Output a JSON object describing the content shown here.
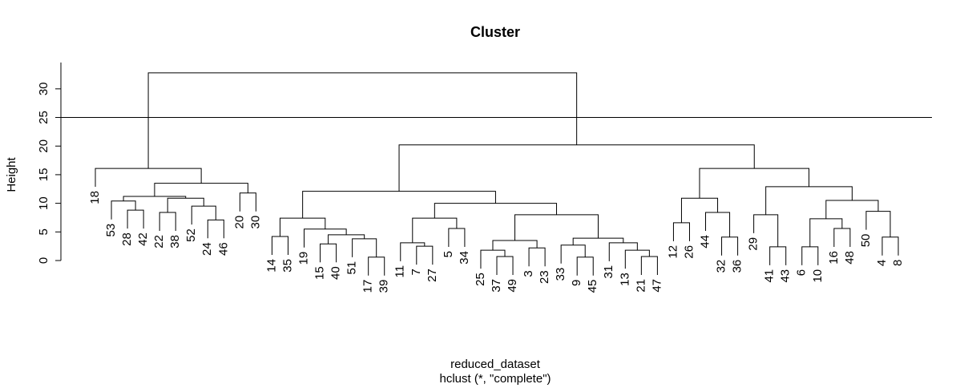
{
  "chart_data": {
    "type": "dendrogram",
    "title": "Cluster",
    "ylabel": "Height",
    "xlabel": "reduced_dataset",
    "subtitle": "hclust (*, \"complete\")",
    "ylim": [
      0,
      34.6
    ],
    "yticks": [
      0,
      5,
      10,
      15,
      20,
      25,
      30
    ],
    "cut_height": 25,
    "color": "#000000",
    "tree": {
      "height": 32.8,
      "children": [
        {
          "height": 16.1,
          "children": [
            {
              "label": "18"
            },
            {
              "height": 13.5,
              "children": [
                {
                  "height": 11.2,
                  "children": [
                    {
                      "height": 10.4,
                      "children": [
                        {
                          "label": "53"
                        },
                        {
                          "height": 8.8,
                          "children": [
                            {
                              "label": "28"
                            },
                            {
                              "label": "42"
                            }
                          ]
                        }
                      ]
                    },
                    {
                      "height": 10.9,
                      "children": [
                        {
                          "height": 8.4,
                          "children": [
                            {
                              "label": "22"
                            },
                            {
                              "label": "38"
                            }
                          ]
                        },
                        {
                          "height": 9.5,
                          "children": [
                            {
                              "label": "52"
                            },
                            {
                              "height": 7.1,
                              "children": [
                                {
                                  "label": "24"
                                },
                                {
                                  "label": "46"
                                }
                              ]
                            }
                          ]
                        }
                      ]
                    }
                  ]
                },
                {
                  "height": 11.8,
                  "children": [
                    {
                      "label": "20"
                    },
                    {
                      "label": "30"
                    }
                  ]
                }
              ]
            }
          ]
        },
        {
          "height": 20.2,
          "children": [
            {
              "height": 12.1,
              "children": [
                {
                  "height": 7.4,
                  "children": [
                    {
                      "height": 4.2,
                      "children": [
                        {
                          "label": "14"
                        },
                        {
                          "label": "35"
                        }
                      ]
                    },
                    {
                      "height": 5.5,
                      "children": [
                        {
                          "label": "19"
                        },
                        {
                          "height": 4.5,
                          "children": [
                            {
                              "height": 2.9,
                              "children": [
                                {
                                  "label": "15"
                                },
                                {
                                  "label": "40"
                                }
                              ]
                            },
                            {
                              "height": 3.8,
                              "children": [
                                {
                                  "label": "51"
                                },
                                {
                                  "height": 0.6,
                                  "children": [
                                    {
                                      "label": "17"
                                    },
                                    {
                                      "label": "39"
                                    }
                                  ]
                                }
                              ]
                            }
                          ]
                        }
                      ]
                    }
                  ]
                },
                {
                  "height": 10.0,
                  "children": [
                    {
                      "height": 7.4,
                      "children": [
                        {
                          "height": 3.1,
                          "children": [
                            {
                              "label": "11"
                            },
                            {
                              "height": 2.5,
                              "children": [
                                {
                                  "label": "7"
                                },
                                {
                                  "label": "27"
                                }
                              ]
                            }
                          ]
                        },
                        {
                          "height": 5.6,
                          "children": [
                            {
                              "label": "5"
                            },
                            {
                              "label": "34"
                            }
                          ]
                        }
                      ]
                    },
                    {
                      "height": 8.0,
                      "children": [
                        {
                          "height": 3.5,
                          "children": [
                            {
                              "height": 1.8,
                              "children": [
                                {
                                  "label": "25"
                                },
                                {
                                  "height": 0.7,
                                  "children": [
                                    {
                                      "label": "37"
                                    },
                                    {
                                      "label": "49"
                                    }
                                  ]
                                }
                              ]
                            },
                            {
                              "height": 2.2,
                              "children": [
                                {
                                  "label": "3"
                                },
                                {
                                  "label": "23"
                                }
                              ]
                            }
                          ]
                        },
                        {
                          "height": 3.9,
                          "children": [
                            {
                              "height": 2.7,
                              "children": [
                                {
                                  "label": "33"
                                },
                                {
                                  "height": 0.6,
                                  "children": [
                                    {
                                      "label": "9"
                                    },
                                    {
                                      "label": "45"
                                    }
                                  ]
                                }
                              ]
                            },
                            {
                              "height": 3.1,
                              "children": [
                                {
                                  "label": "31"
                                },
                                {
                                  "height": 1.8,
                                  "children": [
                                    {
                                      "label": "13"
                                    },
                                    {
                                      "height": 0.7,
                                      "children": [
                                        {
                                          "label": "21"
                                        },
                                        {
                                          "label": "47"
                                        }
                                      ]
                                    }
                                  ]
                                }
                              ]
                            }
                          ]
                        }
                      ]
                    }
                  ]
                }
              ]
            },
            {
              "height": 16.1,
              "children": [
                {
                  "height": 10.9,
                  "children": [
                    {
                      "height": 6.6,
                      "children": [
                        {
                          "label": "12"
                        },
                        {
                          "label": "26"
                        }
                      ]
                    },
                    {
                      "height": 8.4,
                      "children": [
                        {
                          "label": "44"
                        },
                        {
                          "height": 4.1,
                          "children": [
                            {
                              "label": "32"
                            },
                            {
                              "label": "36"
                            }
                          ]
                        }
                      ]
                    }
                  ]
                },
                {
                  "height": 12.9,
                  "children": [
                    {
                      "height": 8.0,
                      "children": [
                        {
                          "label": "29"
                        },
                        {
                          "height": 2.4,
                          "children": [
                            {
                              "label": "41"
                            },
                            {
                              "label": "43"
                            }
                          ]
                        }
                      ]
                    },
                    {
                      "height": 10.5,
                      "children": [
                        {
                          "height": 7.3,
                          "children": [
                            {
                              "height": 2.4,
                              "children": [
                                {
                                  "label": "6"
                                },
                                {
                                  "label": "10"
                                }
                              ]
                            },
                            {
                              "height": 5.6,
                              "children": [
                                {
                                  "label": "16"
                                },
                                {
                                  "label": "48"
                                }
                              ]
                            }
                          ]
                        },
                        {
                          "height": 8.6,
                          "children": [
                            {
                              "label": "50"
                            },
                            {
                              "height": 4.1,
                              "children": [
                                {
                                  "label": "4"
                                },
                                {
                                  "label": "8"
                                }
                              ]
                            }
                          ]
                        }
                      ]
                    }
                  ]
                }
              ]
            }
          ]
        }
      ]
    }
  }
}
